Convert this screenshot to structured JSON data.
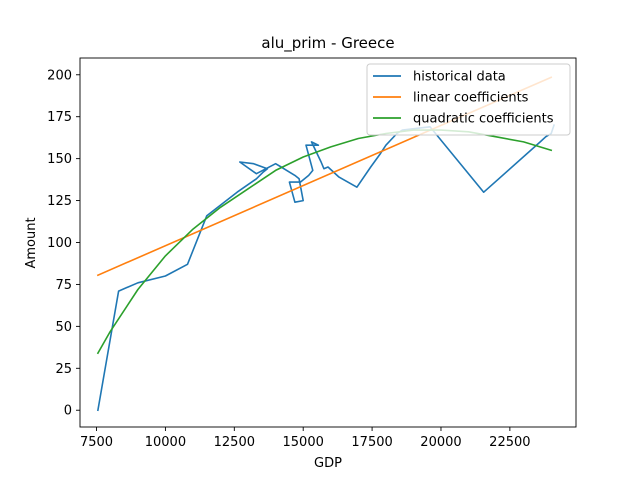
{
  "chart_data": {
    "type": "line",
    "title": "alu_prim - Greece",
    "xlabel": "GDP",
    "ylabel": "Amount",
    "xlim": [
      6900,
      24900
    ],
    "ylim": [
      -10,
      210
    ],
    "xticks": [
      7500,
      10000,
      12500,
      15000,
      17500,
      20000,
      22500
    ],
    "xtick_labels": [
      "7500",
      "10000",
      "12500",
      "15000",
      "17500",
      "20000",
      "22500"
    ],
    "yticks": [
      0,
      25,
      50,
      75,
      100,
      125,
      150,
      175,
      200
    ],
    "ytick_labels": [
      "0",
      "25",
      "50",
      "75",
      "100",
      "125",
      "150",
      "175",
      "200"
    ],
    "grid": false,
    "legend_position": "top-right",
    "series": [
      {
        "name": "historical data",
        "color": "#1f77b4",
        "x": [
          7550,
          8300,
          9000,
          10000,
          10800,
          11500,
          12600,
          13300,
          13550,
          13700,
          13200,
          12700,
          13300,
          14000,
          14200,
          14400,
          14700,
          14850,
          15000,
          14700,
          14500,
          14900,
          15200,
          15350,
          15100,
          15550,
          15300,
          15650,
          15750,
          15900,
          16300,
          16950,
          17450,
          17800,
          18000,
          18400,
          18600,
          19100,
          19600,
          21550,
          23600,
          23800,
          24000,
          24100
        ],
        "y": [
          0,
          71,
          76,
          80,
          87,
          116,
          130,
          138,
          142,
          144,
          147,
          148,
          141,
          147,
          145,
          143,
          140,
          138,
          125,
          124,
          136,
          136,
          140,
          143,
          158,
          158,
          160,
          148,
          144,
          145,
          139,
          133,
          145,
          153,
          158,
          165,
          167,
          168,
          169,
          130,
          160,
          163,
          165,
          170
        ]
      },
      {
        "name": "linear coefficients",
        "color": "#ff7f0e",
        "x": [
          7550,
          24000
        ],
        "y": [
          80.5,
          198.5
        ]
      },
      {
        "name": "quadratic coefficients",
        "color": "#2ca02c",
        "x": [
          7550,
          8000,
          9000,
          10000,
          11000,
          12000,
          13000,
          14000,
          15000,
          16000,
          17000,
          18000,
          19000,
          20000,
          21000,
          22000,
          23000,
          24000
        ],
        "y": [
          34,
          47,
          72,
          92,
          108,
          121,
          132,
          143,
          151,
          157,
          162,
          165,
          167,
          167,
          166,
          163,
          160,
          155
        ]
      }
    ]
  }
}
